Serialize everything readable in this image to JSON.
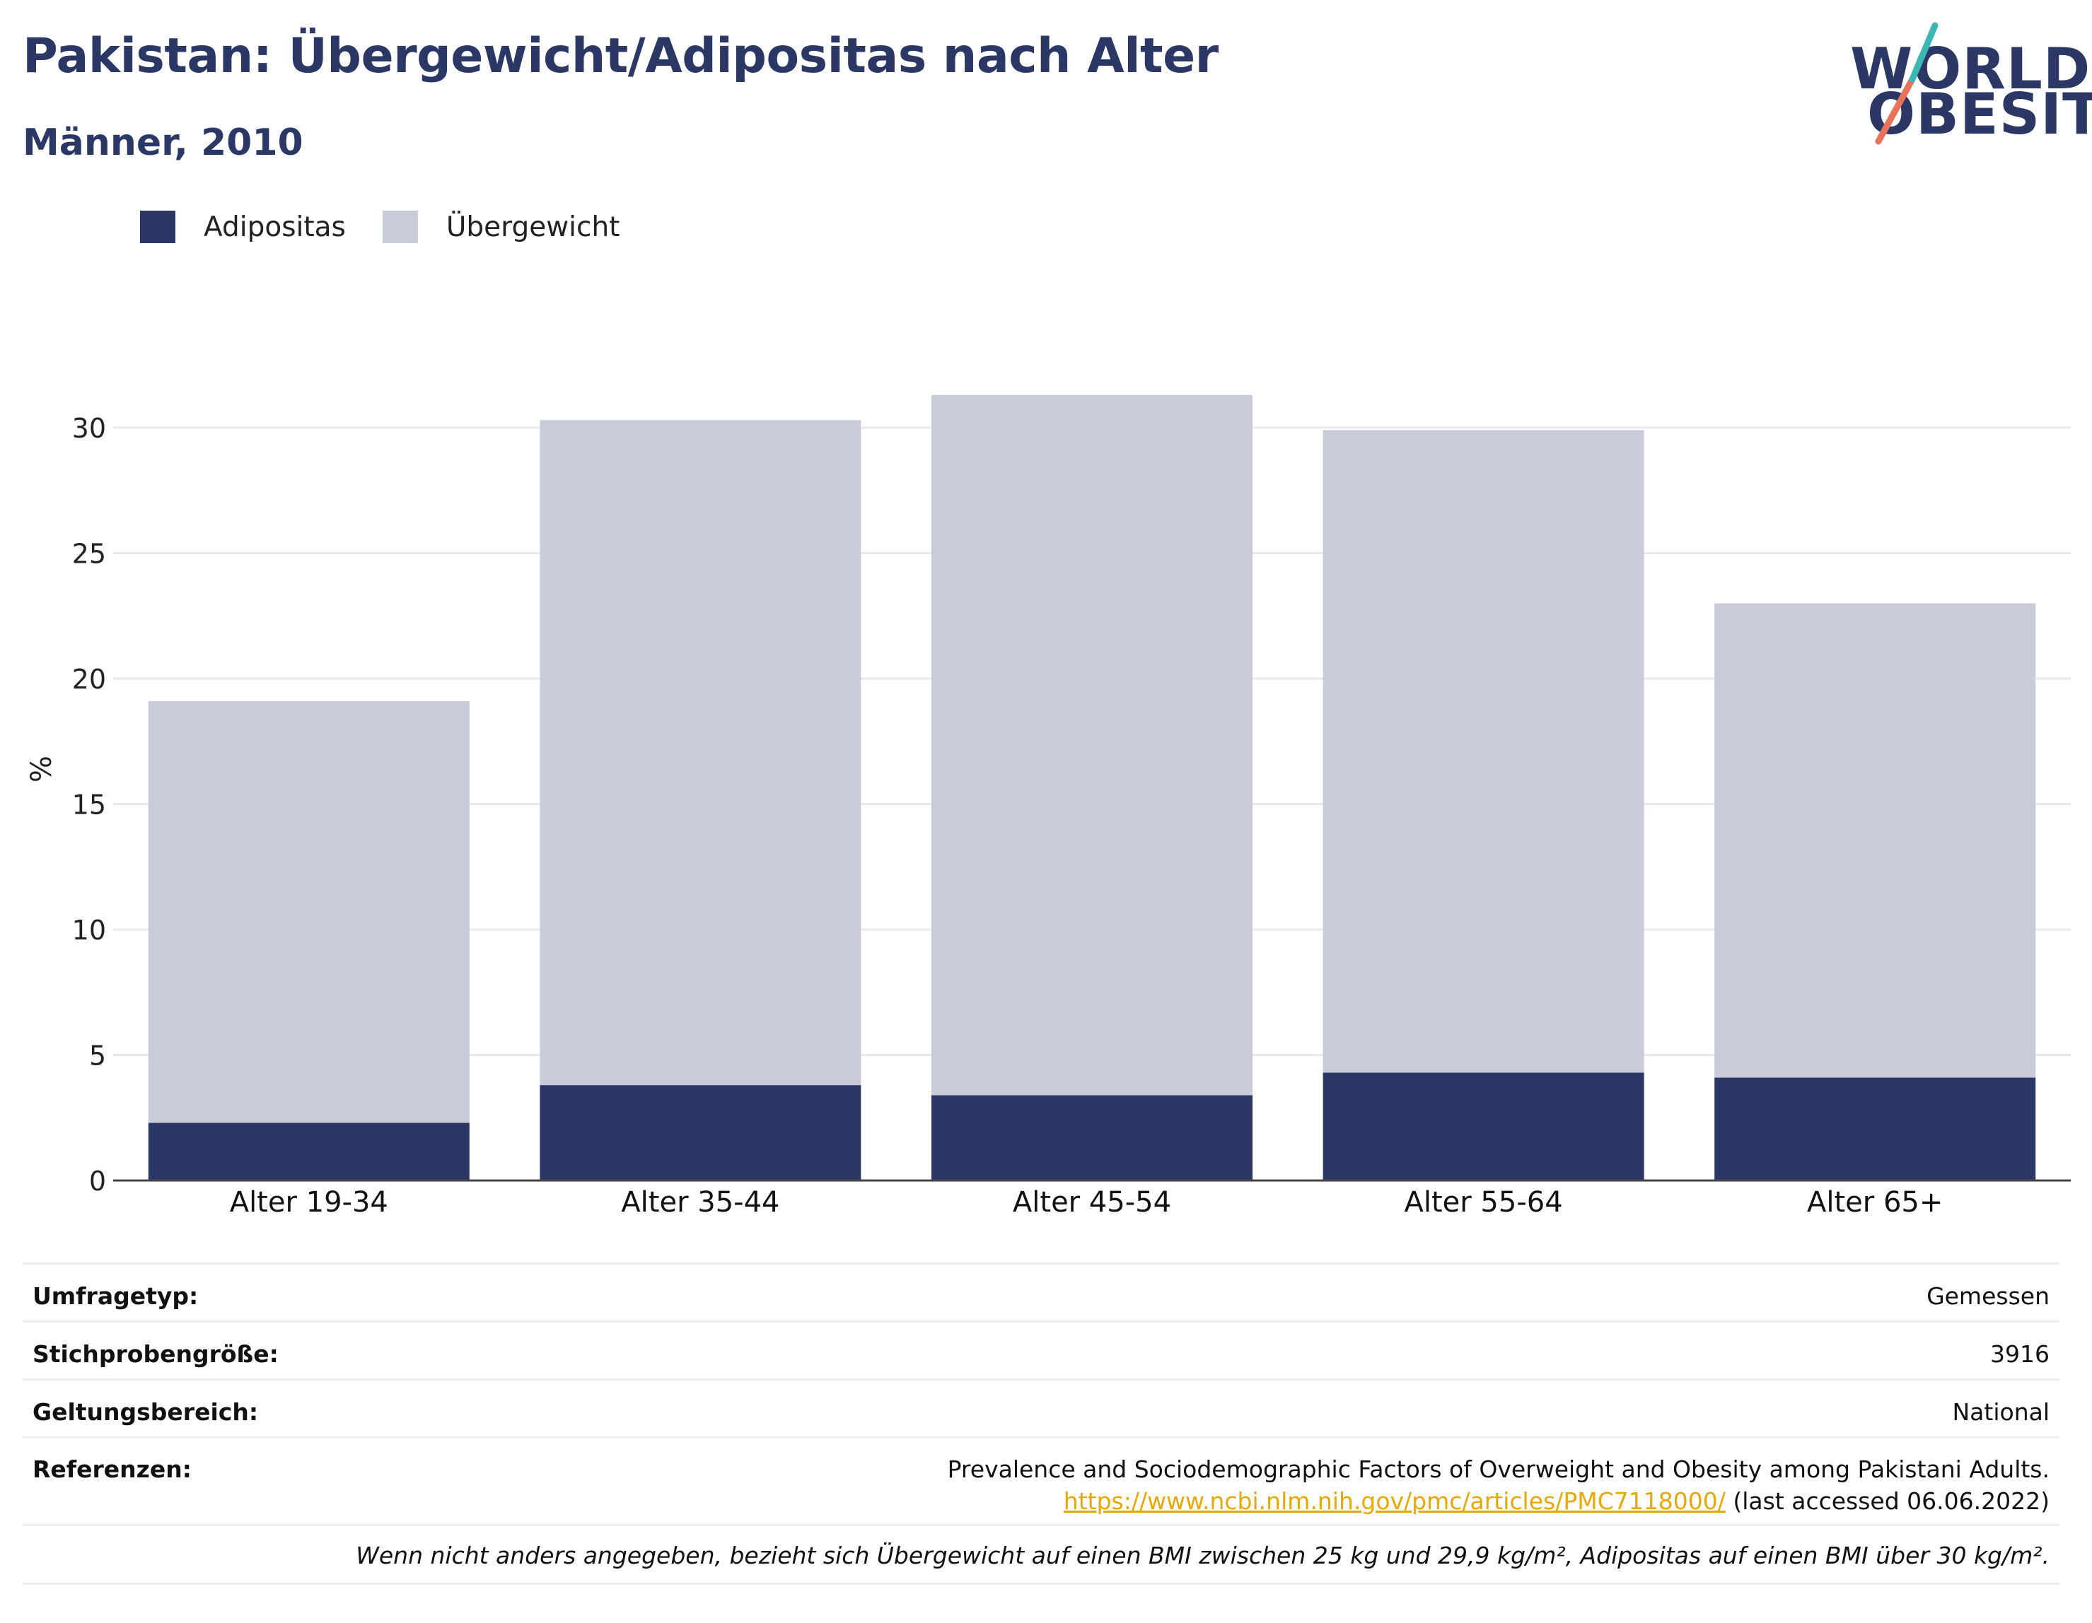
{
  "header": {
    "title": "Pakistan: Übergewicht/Adipositas nach Alter",
    "subtitle": "Männer, 2010"
  },
  "logo": {
    "line1": "WORLD",
    "line2": "OBESITY",
    "colors": {
      "text": "#2b3866",
      "accent_teal": "#3bb8b4",
      "accent_coral": "#e8735a"
    }
  },
  "legend": [
    {
      "label": "Adipositas",
      "color": "#2b3866"
    },
    {
      "label": "Übergewicht",
      "color": "#c9ccd8"
    }
  ],
  "chart_data": {
    "type": "bar",
    "stacked": true,
    "categories": [
      "Alter 19-34",
      "Alter 35-44",
      "Alter 45-54",
      "Alter 55-64",
      "Alter 65+"
    ],
    "series": [
      {
        "name": "Adipositas",
        "color": "#2b3866",
        "values": [
          2.3,
          3.8,
          3.4,
          4.3,
          4.1
        ]
      },
      {
        "name": "Übergewicht",
        "color": "#c9ccd8",
        "values": [
          16.8,
          26.5,
          27.9,
          25.6,
          18.9
        ]
      }
    ],
    "ylabel": "%",
    "ylim": [
      0,
      33
    ],
    "yticks": [
      0,
      5,
      10,
      15,
      20,
      25,
      30
    ],
    "grid": true,
    "legend_position": "top-left"
  },
  "info": {
    "rows": [
      {
        "label": "Umfragetyp:",
        "value": "Gemessen"
      },
      {
        "label": "Stichprobengröße:",
        "value": "3916"
      },
      {
        "label": "Geltungsbereich:",
        "value": "National"
      }
    ],
    "reference": {
      "label": "Referenzen:",
      "text": "Prevalence and Sociodemographic Factors of Overweight and Obesity among Pakistani Adults.",
      "link": "https://www.ncbi.nlm.nih.gov/pmc/articles/PMC7118000/",
      "accessed": "(last accessed 06.06.2022)"
    },
    "note": "Wenn nicht anders angegeben, bezieht sich Übergewicht auf einen BMI zwischen 25 kg und 29,9 kg/m², Adipositas auf einen BMI über 30 kg/m²."
  }
}
